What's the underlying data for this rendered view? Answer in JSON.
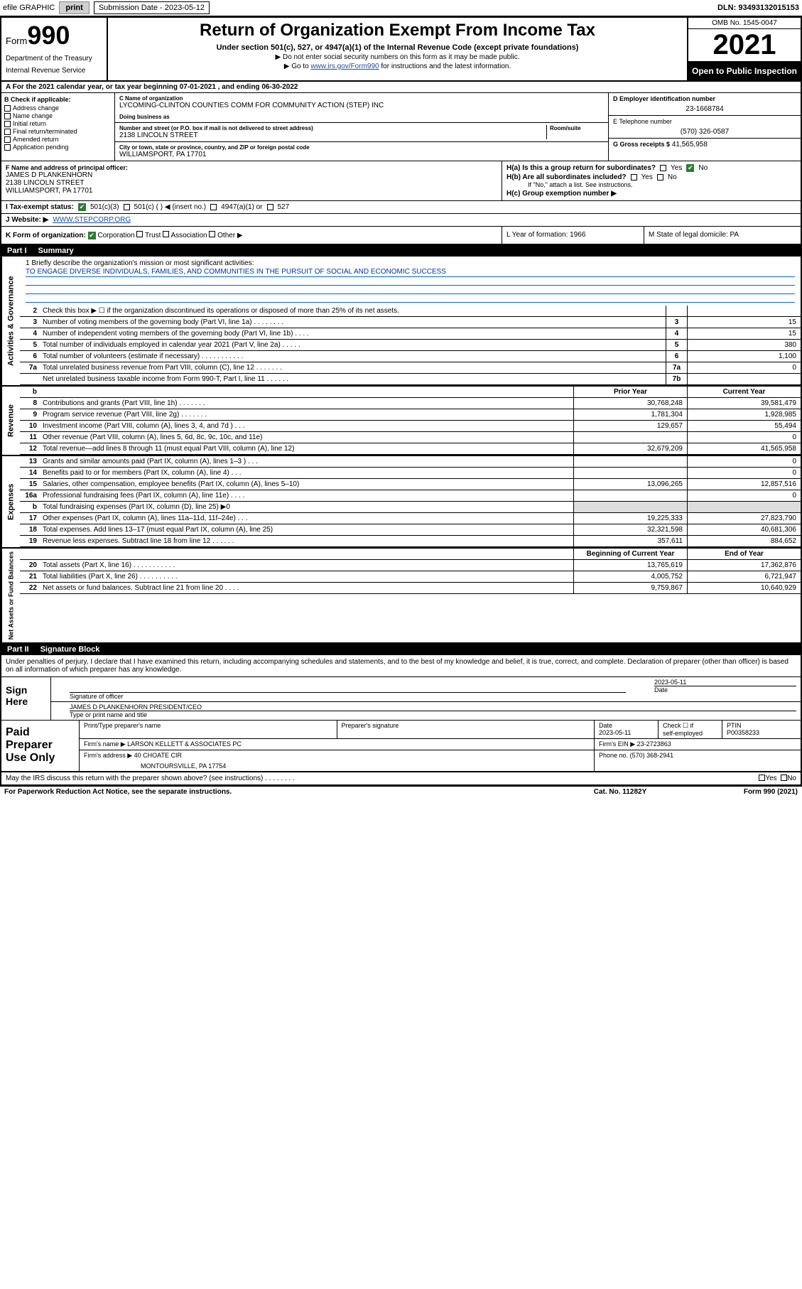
{
  "topbar": {
    "efile_label": "efile GRAPHIC",
    "print_btn": "print",
    "submission_label": "Submission Date - 2023-05-12",
    "dln": "DLN: 93493132015153"
  },
  "header": {
    "form_prefix": "Form",
    "form_number": "990",
    "dept": "Department of the Treasury",
    "irs": "Internal Revenue Service",
    "title": "Return of Organization Exempt From Income Tax",
    "subtitle": "Under section 501(c), 527, or 4947(a)(1) of the Internal Revenue Code (except private foundations)",
    "note1": "▶ Do not enter social security numbers on this form as it may be made public.",
    "note2_a": "▶ Go to ",
    "note2_link": "www.irs.gov/Form990",
    "note2_b": " for instructions and the latest information.",
    "omb": "OMB No. 1545-0047",
    "year": "2021",
    "inspection": "Open to Public Inspection"
  },
  "period": {
    "text": "A For the 2021 calendar year, or tax year beginning 07-01-2021    , and ending 06-30-2022"
  },
  "boxB": {
    "hdr": "B Check if applicable:",
    "items": [
      "Address change",
      "Name change",
      "Initial return",
      "Final return/terminated",
      "Amended return",
      "Application pending"
    ]
  },
  "boxC": {
    "name_label": "C Name of organization",
    "name": "LYCOMING-CLINTON COUNTIES COMM FOR COMMUNITY ACTION (STEP) INC",
    "dba_label": "Doing business as",
    "addr_label": "Number and street (or P.O. box if mail is not delivered to street address)",
    "room_label": "Room/suite",
    "addr": "2138 LINCOLN STREET",
    "city_label": "City or town, state or province, country, and ZIP or foreign postal code",
    "city": "WILLIAMSPORT, PA  17701"
  },
  "boxD": {
    "ein_label": "D Employer identification number",
    "ein": "23-1668784",
    "phone_label": "E Telephone number",
    "phone": "(570) 326-0587",
    "gross_label": "G Gross receipts $",
    "gross": "41,565,958"
  },
  "boxF": {
    "label": "F Name and address of principal officer:",
    "name": "JAMES D PLANKENHORN",
    "addr1": "2138 LINCOLN STREET",
    "addr2": "WILLIAMSPORT, PA  17701"
  },
  "boxH": {
    "a_label": "H(a)  Is this a group return for subordinates?",
    "a_yes": "Yes",
    "a_no_checked": "No",
    "b_label": "H(b)  Are all subordinates included?",
    "b_yes": "Yes",
    "b_no": "No",
    "b_note": "If \"No,\" attach a list. See instructions.",
    "c_label": "H(c)  Group exemption number ▶"
  },
  "rowI": {
    "label": "I   Tax-exempt status:",
    "o1": "501(c)(3)",
    "o2": "501(c) (   ) ◀ (insert no.)",
    "o3": "4947(a)(1) or",
    "o4": "527"
  },
  "rowJ": {
    "label": "J   Website: ▶",
    "val": "WWW.STEPCORP.ORG"
  },
  "rowK": {
    "label": "K Form of organization:",
    "corp": "Corporation",
    "trust": "Trust",
    "assoc": "Association",
    "other": "Other ▶",
    "L": "L Year of formation: 1966",
    "M": "M State of legal domicile: PA"
  },
  "partI": {
    "hdr_num": "Part I",
    "hdr_title": "Summary"
  },
  "mission": {
    "q1": "1   Briefly describe the organization's mission or most significant activities:",
    "text": "TO ENGAGE DIVERSE INDIVIDUALS, FAMILIES, AND COMMUNITIES IN THE PURSUIT OF SOCIAL AND ECONOMIC SUCCESS"
  },
  "gov_rows": [
    {
      "n": "2",
      "d": "Check this box ▶ ☐  if the organization discontinued its operations or disposed of more than 25% of its net assets.",
      "box": "",
      "v": ""
    },
    {
      "n": "3",
      "d": "Number of voting members of the governing body (Part VI, line 1a)   .    .    .    .    .    .    .    .",
      "box": "3",
      "v": "15"
    },
    {
      "n": "4",
      "d": "Number of independent voting members of the governing body (Part VI, line 1b)   .    .    .    .",
      "box": "4",
      "v": "15"
    },
    {
      "n": "5",
      "d": "Total number of individuals employed in calendar year 2021 (Part V, line 2a)   .    .    .    .    .",
      "box": "5",
      "v": "380"
    },
    {
      "n": "6",
      "d": "Total number of volunteers (estimate if necessary)   .    .    .    .    .    .    .    .    .    .    .",
      "box": "6",
      "v": "1,100"
    },
    {
      "n": "7a",
      "d": "Total unrelated business revenue from Part VIII, column (C), line 12   .    .    .    .    .    .    .",
      "box": "7a",
      "v": "0"
    },
    {
      "n": "",
      "d": "Net unrelated business taxable income from Form 990-T, Part I, line 11   .    .    .    .    .    .",
      "box": "7b",
      "v": ""
    }
  ],
  "rev_hdr": {
    "n": "b",
    "prior": "Prior Year",
    "curr": "Current Year"
  },
  "rev_rows": [
    {
      "n": "8",
      "d": "Contributions and grants (Part VIII, line 1h)   .    .    .    .    .    .    .",
      "p": "30,768,248",
      "c": "39,581,479"
    },
    {
      "n": "9",
      "d": "Program service revenue (Part VIII, line 2g)   .    .    .    .    .    .    .",
      "p": "1,781,304",
      "c": "1,928,985"
    },
    {
      "n": "10",
      "d": "Investment income (Part VIII, column (A), lines 3, 4, and 7d )   .    .    .",
      "p": "129,657",
      "c": "55,494"
    },
    {
      "n": "11",
      "d": "Other revenue (Part VIII, column (A), lines 5, 6d, 8c, 9c, 10c, and 11e)",
      "p": "",
      "c": "0"
    },
    {
      "n": "12",
      "d": "Total revenue—add lines 8 through 11 (must equal Part VIII, column (A), line 12)",
      "p": "32,679,209",
      "c": "41,565,958"
    }
  ],
  "exp_rows": [
    {
      "n": "13",
      "d": "Grants and similar amounts paid (Part IX, column (A), lines 1–3 )   .    .    .",
      "p": "",
      "c": "0"
    },
    {
      "n": "14",
      "d": "Benefits paid to or for members (Part IX, column (A), line 4)   .    .    .",
      "p": "",
      "c": "0"
    },
    {
      "n": "15",
      "d": "Salaries, other compensation, employee benefits (Part IX, column (A), lines 5–10)",
      "p": "13,096,265",
      "c": "12,857,516"
    },
    {
      "n": "16a",
      "d": "Professional fundraising fees (Part IX, column (A), line 11e)   .    .    .    .",
      "p": "",
      "c": "0"
    },
    {
      "n": "b",
      "d": "Total fundraising expenses (Part IX, column (D), line 25) ▶0",
      "p": "shade",
      "c": "shade"
    },
    {
      "n": "17",
      "d": "Other expenses (Part IX, column (A), lines 11a–11d, 11f–24e)   .    .    .",
      "p": "19,225,333",
      "c": "27,823,790"
    },
    {
      "n": "18",
      "d": "Total expenses. Add lines 13–17 (must equal Part IX, column (A), line 25)",
      "p": "32,321,598",
      "c": "40,681,306"
    },
    {
      "n": "19",
      "d": "Revenue less expenses. Subtract line 18 from line 12   .    .    .    .    .    .",
      "p": "357,611",
      "c": "884,652"
    }
  ],
  "net_hdr": {
    "prior": "Beginning of Current Year",
    "curr": "End of Year"
  },
  "net_rows": [
    {
      "n": "20",
      "d": "Total assets (Part X, line 16)   .    .    .    .    .    .    .    .    .    .    .",
      "p": "13,765,619",
      "c": "17,362,876"
    },
    {
      "n": "21",
      "d": "Total liabilities (Part X, line 26)   .    .    .    .    .    .    .    .    .    .",
      "p": "4,005,752",
      "c": "6,721,947"
    },
    {
      "n": "22",
      "d": "Net assets or fund balances. Subtract line 21 from line 20   .    .    .    .",
      "p": "9,759,867",
      "c": "10,640,929"
    }
  ],
  "partII": {
    "hdr_num": "Part II",
    "hdr_title": "Signature Block",
    "penalty": "Under penalties of perjury, I declare that I have examined this return, including accompanying schedules and statements, and to the best of my knowledge and belief, it is true, correct, and complete. Declaration of preparer (other than officer) is based on all information of which preparer has any knowledge."
  },
  "sign": {
    "left": "Sign Here",
    "sig_label": "Signature of officer",
    "date_label": "Date",
    "date": "2023-05-11",
    "name": "JAMES D PLANKENHORN  PRESIDENT/CEO",
    "name_label": "Type or print name and title"
  },
  "paid": {
    "left": "Paid Preparer Use Only",
    "h1": "Print/Type preparer's name",
    "h2": "Preparer's signature",
    "h3_label": "Date",
    "h3": "2023-05-11",
    "h4a": "Check ☐ if",
    "h4b": "self-employed",
    "h5_label": "PTIN",
    "h5": "P00358233",
    "firm_name_label": "Firm's name    ▶",
    "firm_name": "LARSON KELLETT & ASSOCIATES PC",
    "firm_ein_label": "Firm's EIN ▶",
    "firm_ein": "23-2723863",
    "firm_addr_label": "Firm's address ▶",
    "firm_addr1": "40 CHOATE CIR",
    "firm_addr2": "MONTOURSVILLE, PA  17754",
    "phone_label": "Phone no.",
    "phone": "(570) 368-2941"
  },
  "footer": {
    "discuss": "May the IRS discuss this return with the preparer shown above? (see instructions)   .    .    .    .    .    .    .    .",
    "yes": "Yes",
    "no": "No",
    "pra": "For Paperwork Reduction Act Notice, see the separate instructions.",
    "cat": "Cat. No. 11282Y",
    "form": "Form 990 (2021)"
  },
  "side_labels": {
    "gov": "Activities & Governance",
    "rev": "Revenue",
    "exp": "Expenses",
    "net": "Net Assets or Fund Balances"
  }
}
